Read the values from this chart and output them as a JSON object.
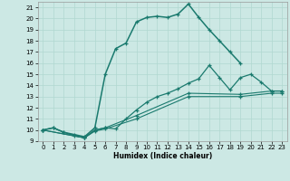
{
  "xlabel": "Humidex (Indice chaleur)",
  "bg_color": "#cce8e4",
  "line_color": "#1a7a6e",
  "grid_color": "#b0d8d0",
  "xlim": [
    -0.5,
    23.5
  ],
  "ylim": [
    9,
    21.5
  ],
  "xticks": [
    0,
    1,
    2,
    3,
    4,
    5,
    6,
    7,
    8,
    9,
    10,
    11,
    12,
    13,
    14,
    15,
    16,
    17,
    18,
    19,
    20,
    21,
    22,
    23
  ],
  "yticks": [
    9,
    10,
    11,
    12,
    13,
    14,
    15,
    16,
    17,
    18,
    19,
    20,
    21
  ],
  "curve1_x": [
    0,
    1,
    2,
    3,
    4,
    5,
    6,
    7,
    8,
    9,
    10,
    11,
    12,
    13,
    14,
    15,
    16,
    17,
    18,
    19
  ],
  "curve1_y": [
    10,
    10.2,
    9.8,
    9.6,
    9.4,
    10.2,
    15.0,
    17.3,
    17.8,
    19.7,
    20.1,
    20.2,
    20.1,
    20.4,
    21.3,
    20.1,
    19.0,
    18.0,
    17.0,
    16.0
  ],
  "curve2_x": [
    0,
    1,
    2,
    3,
    4,
    5,
    6,
    7,
    8,
    9,
    10,
    11,
    12,
    13,
    14,
    15,
    16,
    17,
    18,
    19,
    20,
    21,
    22,
    23
  ],
  "curve2_y": [
    10,
    10.2,
    9.8,
    9.5,
    9.3,
    10.0,
    10.2,
    10.1,
    11.0,
    11.8,
    12.5,
    13.0,
    13.3,
    13.7,
    14.2,
    14.6,
    15.8,
    14.7,
    13.6,
    14.7,
    15.0,
    14.3,
    13.5,
    13.5
  ],
  "curve3_x": [
    0,
    4,
    5,
    6,
    9,
    14,
    19,
    22,
    23
  ],
  "curve3_y": [
    10,
    9.3,
    10.0,
    10.2,
    11.3,
    13.3,
    13.2,
    13.5,
    13.5
  ],
  "curve4_x": [
    0,
    4,
    5,
    6,
    9,
    14,
    19,
    22,
    23
  ],
  "curve4_y": [
    10,
    9.3,
    9.9,
    10.1,
    11.0,
    13.0,
    13.0,
    13.3,
    13.3
  ]
}
